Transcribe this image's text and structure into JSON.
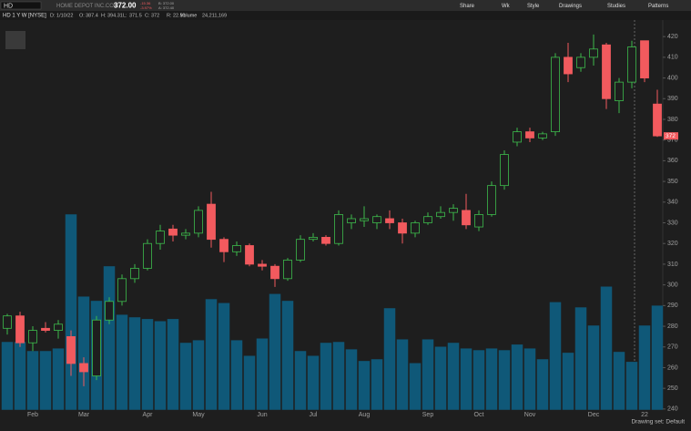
{
  "header": {
    "symbol": "HD",
    "company": "HOME DEPOT INC.COM",
    "price": "372.00",
    "change": "-15.36",
    "change_pct": "-3.97%",
    "bid": "B: 372.00",
    "ask": "A: 372.40",
    "buttons": [
      "Share",
      "Wk",
      "Style",
      "Drawings",
      "Studies",
      "Patterns"
    ],
    "status": "Drawing set: Default"
  },
  "chart_data": {
    "type": "candlestick",
    "title": "HD 1 Y W [NYSE]",
    "info": {
      "date": "D: 1/10/22",
      "labels": [
        "O:",
        "H:",
        "L:",
        "C:",
        "R:"
      ],
      "range": 22.81,
      "volume_label": "Volume",
      "volume_text": "24,211,169"
    },
    "categories": [
      null,
      null,
      "Feb",
      null,
      null,
      null,
      "Mar",
      null,
      null,
      null,
      null,
      "Apr",
      null,
      null,
      null,
      "May",
      null,
      null,
      null,
      null,
      "Jun",
      null,
      null,
      null,
      "Jul",
      null,
      null,
      null,
      "Aug",
      null,
      null,
      null,
      null,
      "Sep",
      null,
      null,
      null,
      "Oct",
      null,
      null,
      null,
      "Nov",
      null,
      null,
      null,
      null,
      "Dec",
      null,
      null,
      null,
      "22",
      null
    ],
    "open": [
      279,
      285,
      272,
      279,
      278,
      275,
      262,
      256,
      283,
      292,
      303,
      308,
      320,
      327,
      324,
      325,
      339,
      322,
      316,
      319,
      310,
      309,
      303,
      312,
      322,
      323,
      320,
      330,
      331,
      330,
      332,
      330,
      325,
      330,
      333,
      335,
      336,
      328,
      334,
      348,
      369,
      374,
      371,
      374,
      410,
      405,
      410,
      416,
      389,
      398,
      418,
      387.4
    ],
    "high": [
      286,
      287,
      280,
      282,
      283,
      278,
      265,
      285,
      294,
      305,
      310,
      322,
      329,
      329,
      327,
      338,
      345,
      323,
      321,
      320,
      312,
      310,
      313,
      324,
      325,
      324,
      336,
      334,
      338,
      334,
      336,
      332,
      331,
      335,
      338,
      339,
      344,
      336,
      350,
      365,
      376,
      376,
      374,
      412,
      417,
      412,
      421,
      417,
      400,
      418,
      418,
      394.31
    ],
    "low": [
      276,
      270,
      268,
      277,
      274,
      256,
      251,
      254,
      281,
      290,
      301,
      307,
      317,
      321,
      322,
      323,
      318,
      311,
      314,
      309,
      307,
      299,
      302,
      311,
      321,
      319,
      319,
      327,
      328,
      327,
      327,
      320,
      323,
      329,
      332,
      331,
      327,
      326,
      333,
      346,
      367,
      369,
      370,
      372,
      398,
      403,
      406,
      385,
      383,
      395,
      398,
      371.5
    ],
    "close": [
      285,
      272,
      278,
      278,
      281,
      262,
      258,
      283,
      292,
      303,
      308,
      320,
      326,
      324,
      325,
      336,
      322,
      316,
      319,
      310,
      309,
      303,
      312,
      322,
      323,
      320,
      334,
      332,
      332,
      333,
      330,
      325,
      330,
      333,
      335,
      337,
      329,
      334,
      348,
      363,
      374,
      371,
      373,
      410,
      402,
      410,
      414,
      390,
      398,
      415,
      400,
      372
    ],
    "volume": [
      15800000,
      15800000,
      13700000,
      13700000,
      14300000,
      45300000,
      26300000,
      25300000,
      33300000,
      22100000,
      21500000,
      21100000,
      20600000,
      21100000,
      15600000,
      16200000,
      25700000,
      24800000,
      16200000,
      12600000,
      16600000,
      26900000,
      25300000,
      13700000,
      12600000,
      15600000,
      15800000,
      14100000,
      11400000,
      11800000,
      23600000,
      16400000,
      10900000,
      16400000,
      14700000,
      15600000,
      14300000,
      13900000,
      14300000,
      13900000,
      15200000,
      14300000,
      11800000,
      25000000,
      13300000,
      23800000,
      19600000,
      28600000,
      13500000,
      11200000,
      19600000,
      24211169
    ],
    "up_color": "#3dbb4c",
    "down_color": "#f25a5e",
    "volume_color": "#0f5878",
    "ylim": [
      239.5,
      428
    ],
    "yticks": [
      240,
      250,
      260,
      270,
      280,
      290,
      300,
      310,
      320,
      330,
      340,
      350,
      360,
      370,
      380,
      390,
      400,
      410,
      420
    ]
  }
}
